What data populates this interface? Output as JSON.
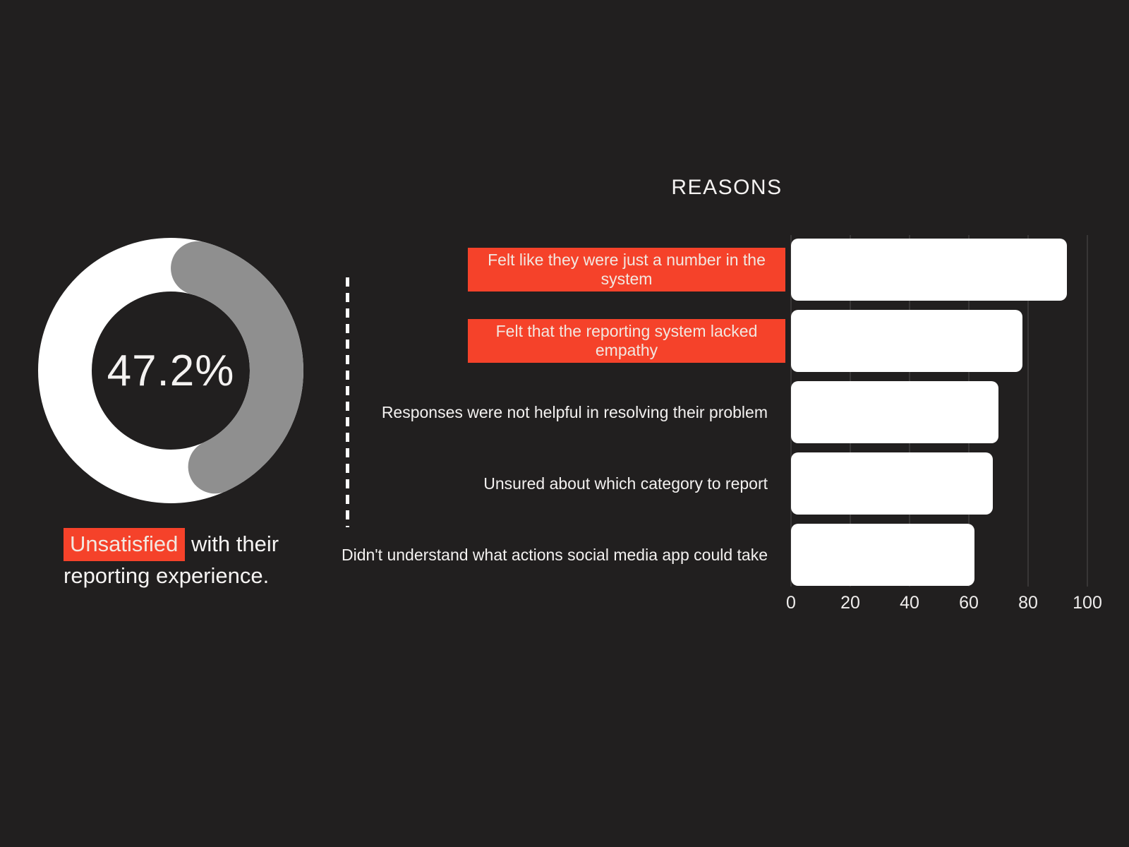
{
  "colors": {
    "background": "#211f1f",
    "accent_red": "#f5422a",
    "bar_white": "#ffffff",
    "arc_gray": "#8f8f8f",
    "text_on_red": "#f2e7e0",
    "text_white": "#f5f3f2",
    "grid_line": "#383636"
  },
  "donut": {
    "percent_label": "47.2%",
    "percent_value": 47.2,
    "ring_color": "#ffffff",
    "arc_color": "#8f8f8f",
    "caption": {
      "highlight_word": "Unsatisfied",
      "line1_rest": "with their",
      "line2": "reporting experience."
    }
  },
  "chart_data": {
    "type": "bar",
    "orientation": "horizontal",
    "title": "REASONS",
    "categories": [
      "Felt like they were just a number in the system",
      "Felt that the reporting system lacked empathy",
      "Responses were not helpful in resolving their problem",
      "Unsured about which category to report",
      "Didn't understand what actions social media app could take"
    ],
    "values": [
      93,
      78,
      70,
      68,
      62
    ],
    "highlighted": [
      true,
      true,
      false,
      false,
      false
    ],
    "x_ticks": [
      "0",
      "20",
      "40",
      "60",
      "80",
      "100"
    ],
    "xlabel": "",
    "ylabel": "",
    "xlim": [
      0,
      100
    ],
    "grid": true,
    "legend": false,
    "bar_color": "#ffffff",
    "highlight_label_color": "#f5422a"
  }
}
